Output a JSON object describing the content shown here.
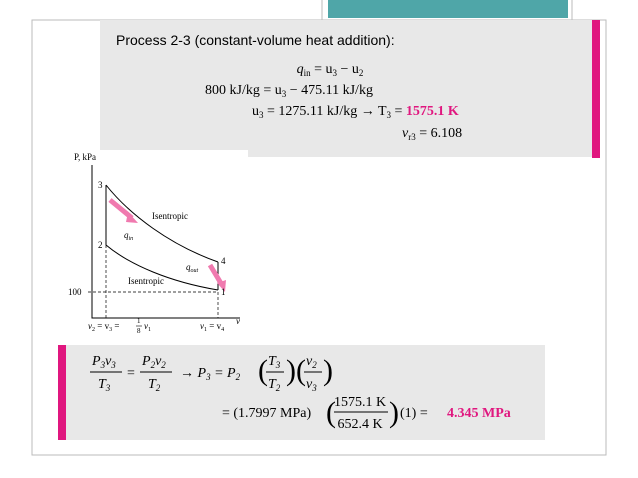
{
  "process": {
    "title": "Process 2-3 (constant-volume heat addition):",
    "eq1": [
      "q",
      "in",
      " = u",
      "3",
      " − u",
      "2"
    ],
    "eq2": [
      "800 kJ/kg = u",
      "3",
      " − 475.11 kJ/kg"
    ],
    "eq3": [
      "u",
      "3",
      " = 1275.11 kJ/kg  →  T",
      "3",
      " = ",
      "1575.1 K"
    ],
    "eq4": [
      "v",
      "r3",
      " = 6.108"
    ]
  },
  "diagram": {
    "y_axis": "P, kPa",
    "x_axis": "v",
    "points": [
      "3",
      "2",
      "4",
      "1"
    ],
    "pressure_label": "100",
    "upper_curve": "Isentropic",
    "lower_curve": "Isentropic",
    "q_in": [
      "q",
      "in"
    ],
    "q_out": [
      "q",
      "out"
    ],
    "v2_label": [
      "v",
      "2",
      " = v",
      "3",
      " = ",
      "1",
      "8",
      "v",
      "1"
    ],
    "v1_label": [
      "v",
      "1",
      " = v",
      "4"
    ]
  },
  "result": {
    "frac1_num": [
      "P",
      "3",
      "v",
      "3"
    ],
    "frac1_den": [
      "T",
      "3"
    ],
    "equals": "=",
    "frac2_num": [
      "P",
      "2",
      "v",
      "2"
    ],
    "frac2_den": [
      "T",
      "2"
    ],
    "arrow_eq": [
      "→  P",
      "3",
      " = P",
      "2"
    ],
    "frac3_num": [
      "T",
      "3"
    ],
    "frac3_den": [
      "T",
      "2"
    ],
    "frac4_num": [
      "v",
      "2"
    ],
    "frac4_den": [
      "v",
      "3"
    ],
    "line2_start": "= (1.7997 MPa)",
    "frac5_num": "1575.1 K",
    "frac5_den": "652.4 K",
    "line2_end": "(1)  = ",
    "answer": "4.345 MPa"
  }
}
